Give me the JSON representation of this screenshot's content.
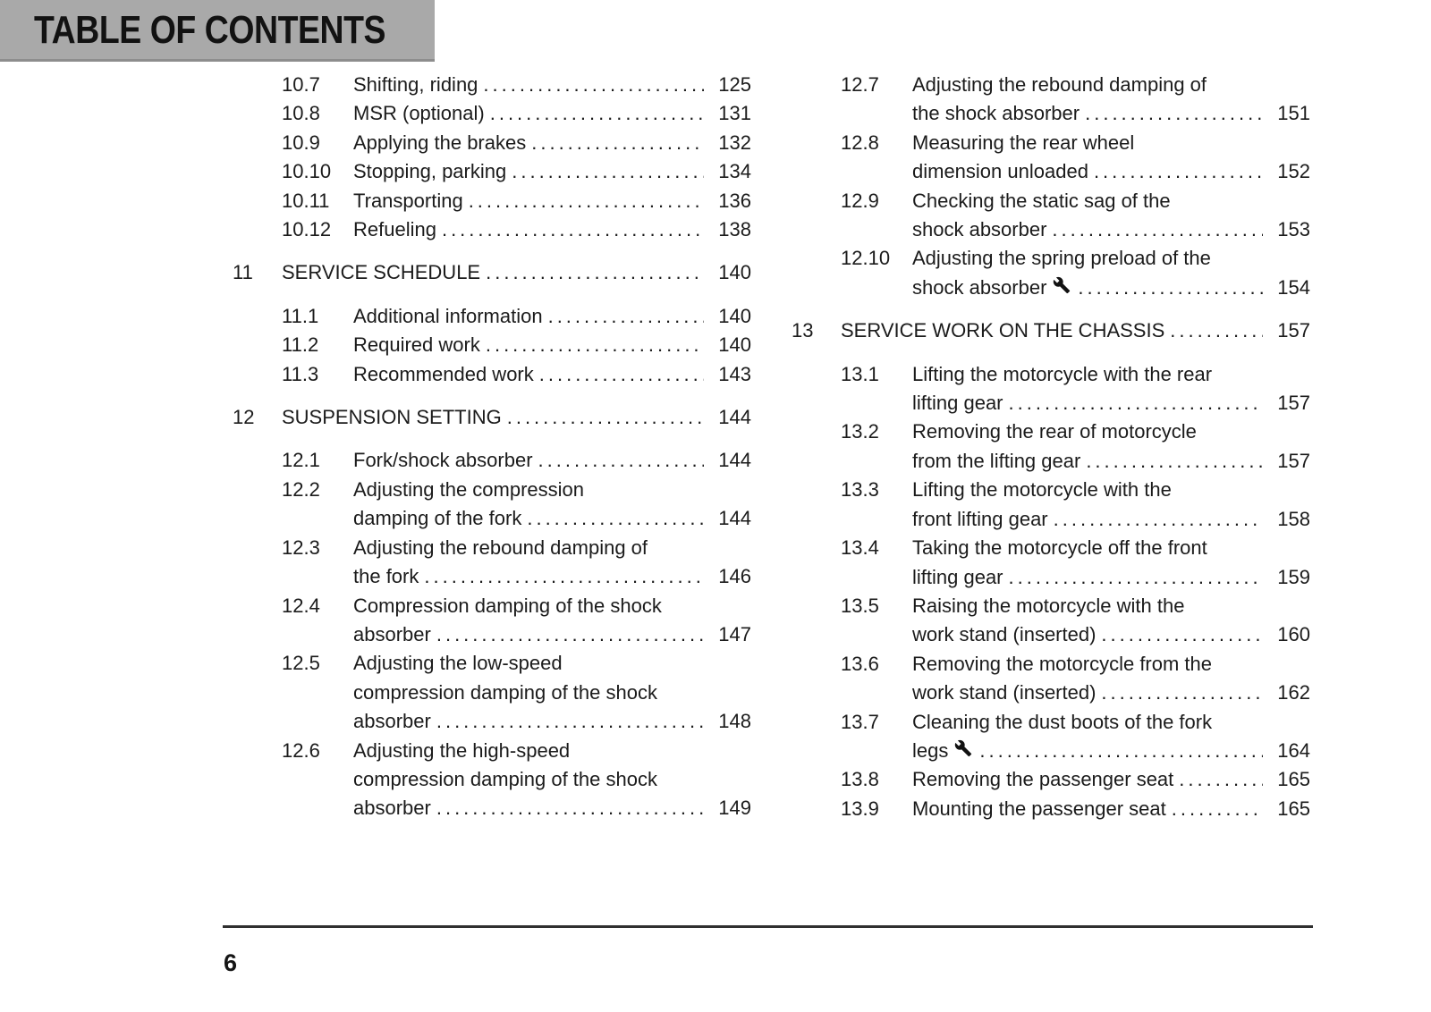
{
  "header": {
    "title": "TABLE OF CONTENTS"
  },
  "footer": {
    "page_number": "6"
  },
  "colors": {
    "header_bg": "#a9a9a9",
    "header_edge": "#8d8d8d",
    "text": "#1b1b1b",
    "rule": "#2f2f2f"
  },
  "icons": {
    "wrench": "wrench-icon"
  },
  "toc": {
    "columns": [
      {
        "name": "left",
        "entries": [
          {
            "type": "sub",
            "num": "10.7",
            "lines": [
              "Shifting, riding"
            ],
            "page": "125"
          },
          {
            "type": "sub",
            "num": "10.8",
            "lines": [
              "MSR (optional)"
            ],
            "page": "131"
          },
          {
            "type": "sub",
            "num": "10.9",
            "lines": [
              "Applying the brakes"
            ],
            "page": "132"
          },
          {
            "type": "sub",
            "num": "10.10",
            "lines": [
              "Stopping, parking"
            ],
            "page": "134"
          },
          {
            "type": "sub",
            "num": "10.11",
            "lines": [
              "Transporting"
            ],
            "page": "136"
          },
          {
            "type": "sub",
            "num": "10.12",
            "lines": [
              "Refueling"
            ],
            "page": "138"
          },
          {
            "type": "section",
            "num": "11",
            "lines": [
              "SERVICE SCHEDULE"
            ],
            "page": "140"
          },
          {
            "type": "sub",
            "num": "11.1",
            "lines": [
              "Additional information"
            ],
            "page": "140"
          },
          {
            "type": "sub",
            "num": "11.2",
            "lines": [
              "Required work"
            ],
            "page": "140"
          },
          {
            "type": "sub",
            "num": "11.3",
            "lines": [
              "Recommended work"
            ],
            "page": "143"
          },
          {
            "type": "section",
            "num": "12",
            "lines": [
              "SUSPENSION SETTING"
            ],
            "page": "144"
          },
          {
            "type": "sub",
            "num": "12.1",
            "lines": [
              "Fork/shock absorber"
            ],
            "page": "144"
          },
          {
            "type": "sub",
            "num": "12.2",
            "lines": [
              "Adjusting the compression",
              "damping of the fork"
            ],
            "page": "144"
          },
          {
            "type": "sub",
            "num": "12.3",
            "lines": [
              "Adjusting the rebound damping of",
              "the fork"
            ],
            "page": "146"
          },
          {
            "type": "sub",
            "num": "12.4",
            "lines": [
              "Compression damping of the shock",
              "absorber"
            ],
            "page": "147"
          },
          {
            "type": "sub",
            "num": "12.5",
            "lines": [
              "Adjusting the low-speed",
              "compression damping of the shock",
              "absorber"
            ],
            "page": "148"
          },
          {
            "type": "sub",
            "num": "12.6",
            "lines": [
              "Adjusting the high-speed",
              "compression damping of the shock",
              "absorber"
            ],
            "page": "149"
          }
        ]
      },
      {
        "name": "right",
        "entries": [
          {
            "type": "sub",
            "num": "12.7",
            "lines": [
              "Adjusting the rebound damping of",
              "the shock absorber"
            ],
            "page": "151"
          },
          {
            "type": "sub",
            "num": "12.8",
            "lines": [
              "Measuring the rear wheel",
              "dimension unloaded"
            ],
            "page": "152"
          },
          {
            "type": "sub",
            "num": "12.9",
            "lines": [
              "Checking the static sag of the",
              "shock absorber"
            ],
            "page": "153"
          },
          {
            "type": "sub",
            "num": "12.10",
            "lines": [
              "Adjusting the spring preload of the",
              "shock absorber"
            ],
            "page": "154",
            "icon": "wrench"
          },
          {
            "type": "section",
            "num": "13",
            "lines": [
              "SERVICE WORK ON THE CHASSIS"
            ],
            "page": "157"
          },
          {
            "type": "sub",
            "num": "13.1",
            "lines": [
              "Lifting the motorcycle with the rear",
              "lifting gear"
            ],
            "page": "157"
          },
          {
            "type": "sub",
            "num": "13.2",
            "lines": [
              "Removing the rear of motorcycle",
              "from the lifting gear"
            ],
            "page": "157"
          },
          {
            "type": "sub",
            "num": "13.3",
            "lines": [
              "Lifting the motorcycle with the",
              "front lifting gear"
            ],
            "page": "158"
          },
          {
            "type": "sub",
            "num": "13.4",
            "lines": [
              "Taking the motorcycle off the front",
              "lifting gear"
            ],
            "page": "159"
          },
          {
            "type": "sub",
            "num": "13.5",
            "lines": [
              "Raising the motorcycle with the",
              "work stand (inserted)"
            ],
            "page": "160"
          },
          {
            "type": "sub",
            "num": "13.6",
            "lines": [
              "Removing the motorcycle from the",
              "work stand (inserted)"
            ],
            "page": "162"
          },
          {
            "type": "sub",
            "num": "13.7",
            "lines": [
              "Cleaning the dust boots of the fork",
              "legs"
            ],
            "page": "164",
            "icon": "wrench"
          },
          {
            "type": "sub",
            "num": "13.8",
            "lines": [
              "Removing the passenger seat"
            ],
            "page": "165"
          },
          {
            "type": "sub",
            "num": "13.9",
            "lines": [
              "Mounting the passenger seat"
            ],
            "page": "165"
          }
        ]
      }
    ]
  }
}
